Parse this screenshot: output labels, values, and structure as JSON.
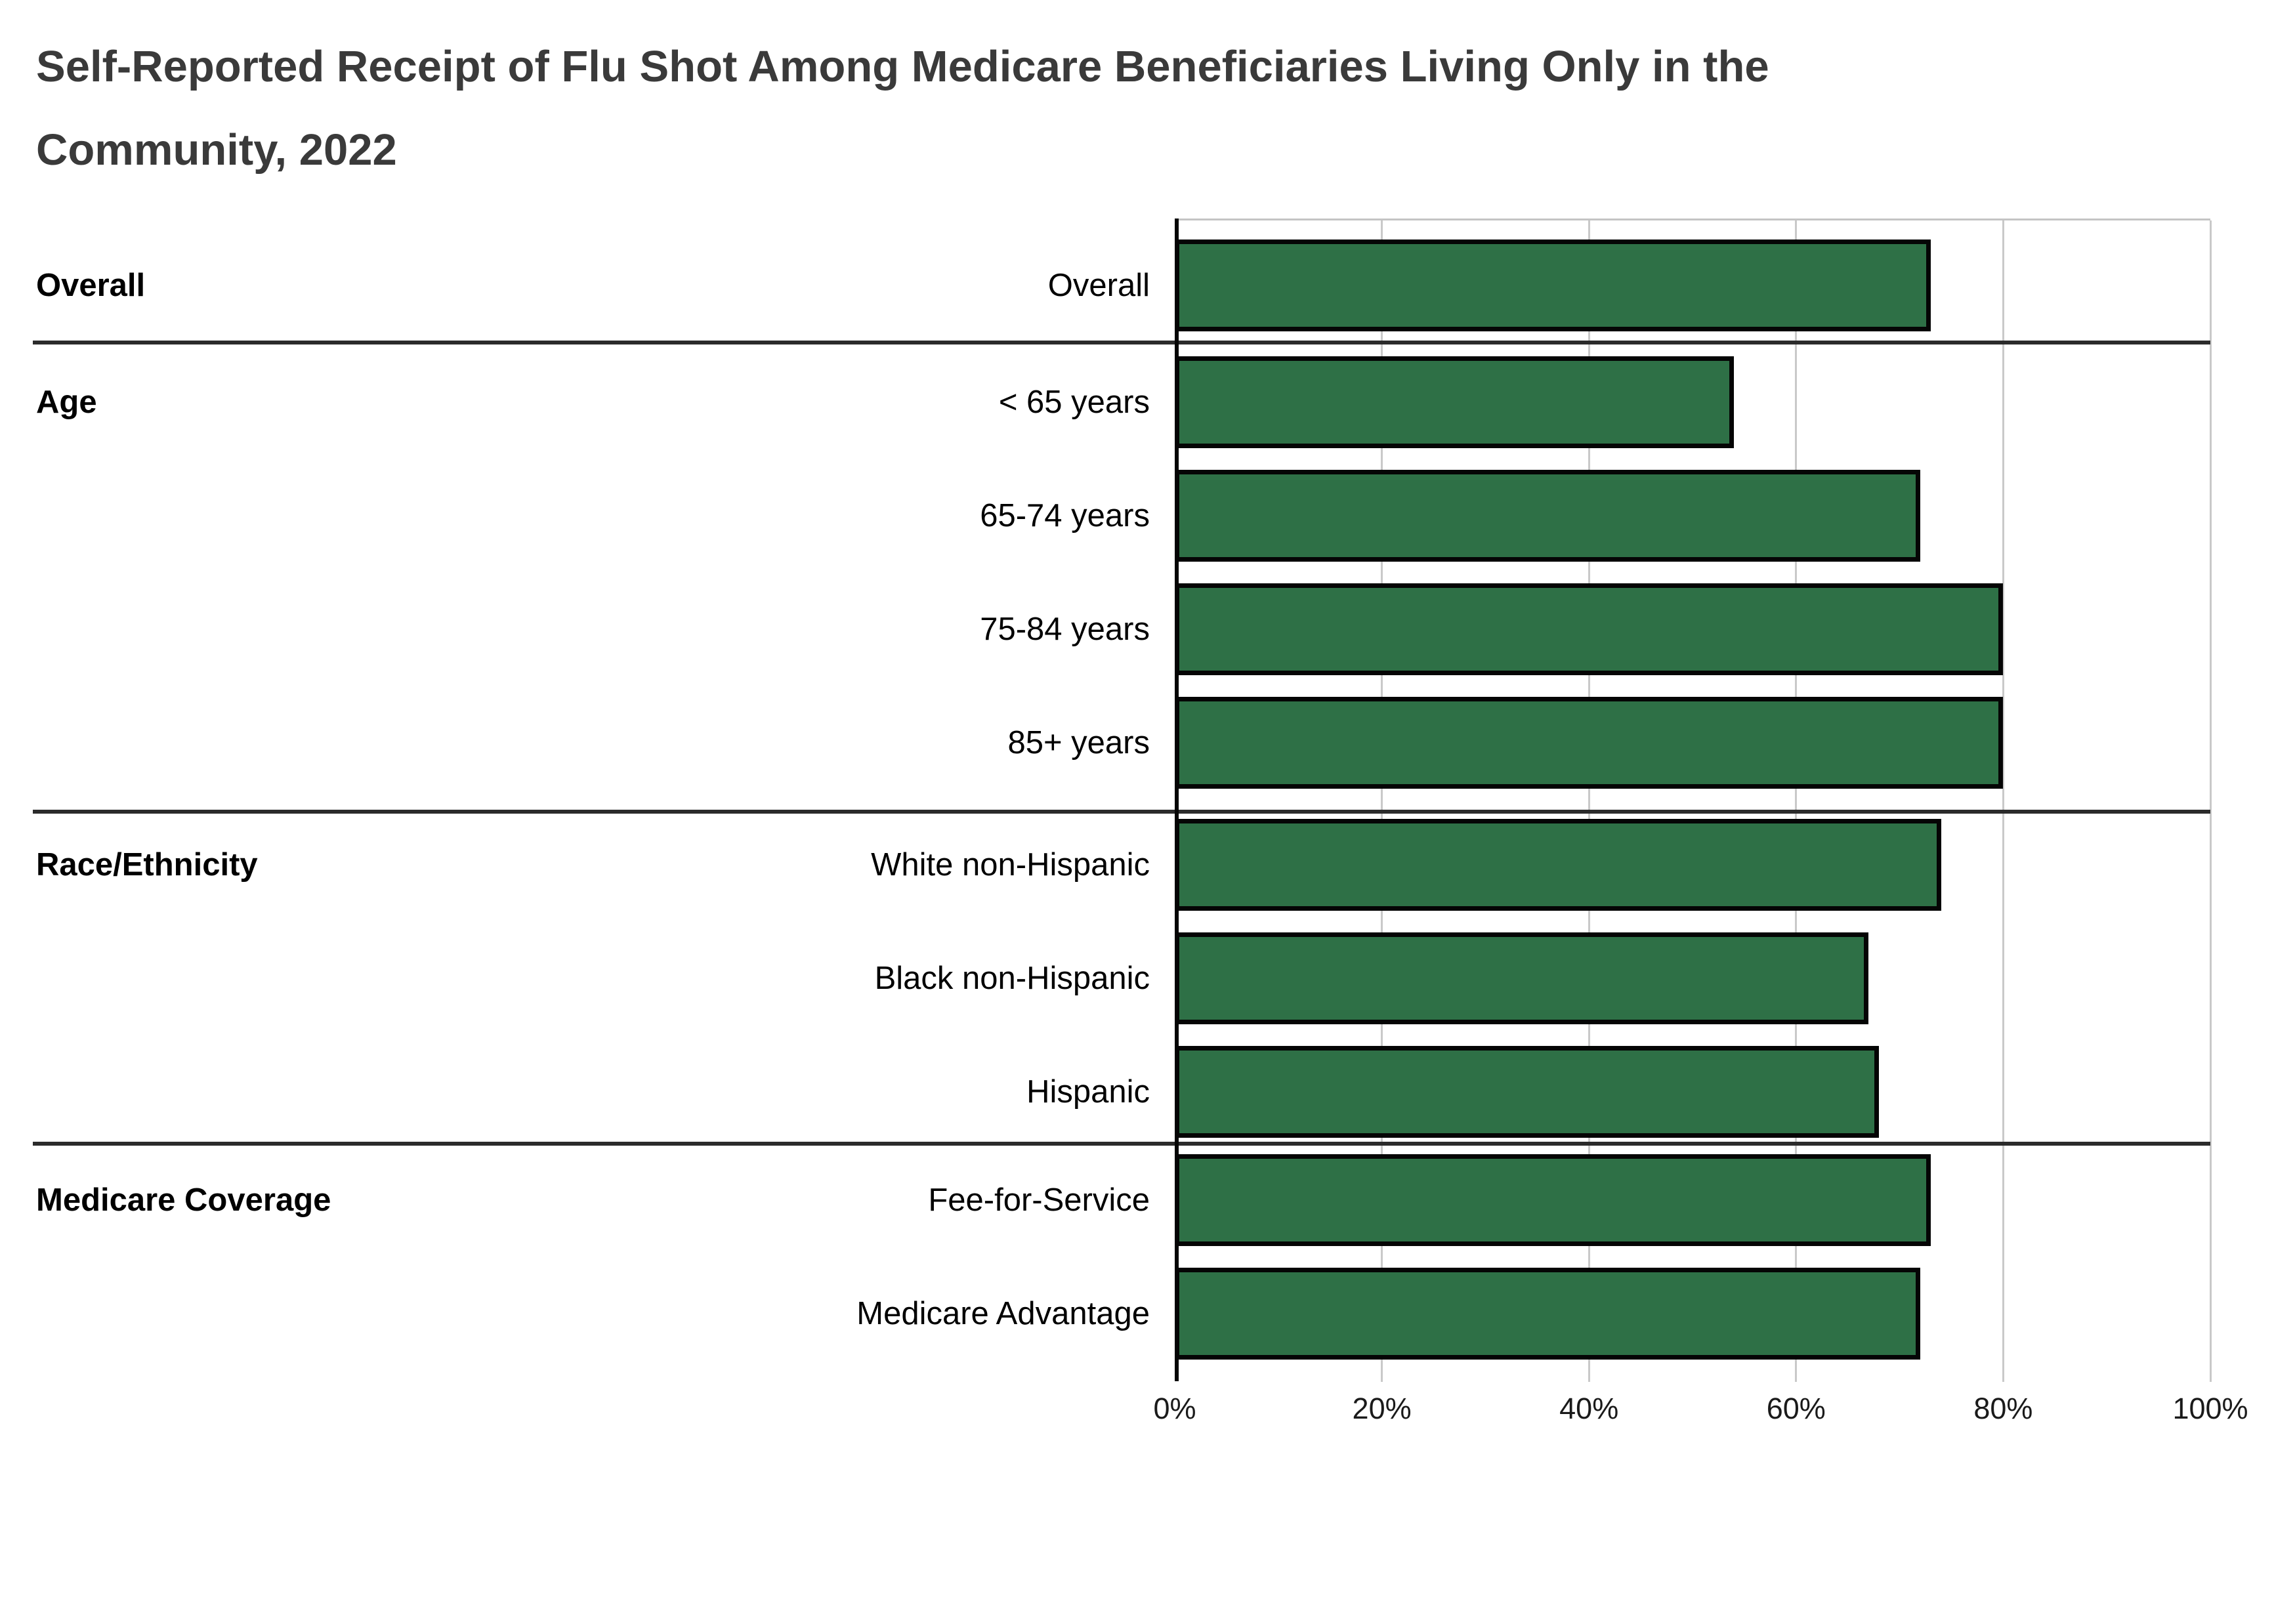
{
  "title": {
    "line1": "Self-Reported Receipt of Flu Shot Among Medicare Beneficiaries Living Only in the",
    "line2": "Community, 2022"
  },
  "chart": {
    "sections": [
      {
        "label": "Overall",
        "rows": [
          {
            "label": "Overall",
            "value": 73
          }
        ]
      },
      {
        "label": "Age",
        "rows": [
          {
            "label": "< 65 years",
            "value": 54
          },
          {
            "label": "65-74 years",
            "value": 72
          },
          {
            "label": "75-84 years",
            "value": 80
          },
          {
            "label": "85+ years",
            "value": 80
          }
        ]
      },
      {
        "label": "Race/Ethnicity",
        "rows": [
          {
            "label": "White non-Hispanic",
            "value": 74
          },
          {
            "label": "Black non-Hispanic",
            "value": 67
          },
          {
            "label": "Hispanic",
            "value": 68
          }
        ]
      },
      {
        "label": "Medicare Coverage",
        "rows": [
          {
            "label": "Fee-for-Service",
            "value": 73
          },
          {
            "label": "Medicare Advantage",
            "value": 72
          }
        ]
      }
    ],
    "x_axis": {
      "min": 0,
      "max": 100,
      "tick_step": 20,
      "ticks": [
        "0%",
        "20%",
        "40%",
        "60%",
        "80%",
        "100%"
      ]
    }
  },
  "colors": {
    "bar_fill": "#2e7046",
    "bar_border": "#050505",
    "gridline": "#c9c9c9",
    "divider": "#2b2b2b",
    "title_text": "#3a3a3a"
  },
  "chart_data": {
    "type": "bar",
    "orientation": "horizontal",
    "title": "Self-Reported Receipt of Flu Shot Among Medicare Beneficiaries Living Only in the Community, 2022",
    "xlabel": "",
    "ylabel": "",
    "xlim": [
      0,
      100
    ],
    "xticks_percent": [
      0,
      20,
      40,
      60,
      80,
      100
    ],
    "grid": "vertical",
    "legend": "none",
    "categories": [
      "Overall",
      "< 65 years",
      "65-74 years",
      "75-84 years",
      "85+ years",
      "White non-Hispanic",
      "Black non-Hispanic",
      "Hispanic",
      "Fee-for-Service",
      "Medicare Advantage"
    ],
    "values": [
      73,
      54,
      72,
      80,
      80,
      74,
      67,
      68,
      73,
      72
    ],
    "groups": [
      {
        "name": "Overall",
        "categories": [
          "Overall"
        ],
        "values": [
          73
        ]
      },
      {
        "name": "Age",
        "categories": [
          "< 65 years",
          "65-74 years",
          "75-84 years",
          "85+ years"
        ],
        "values": [
          54,
          72,
          80,
          80
        ]
      },
      {
        "name": "Race/Ethnicity",
        "categories": [
          "White non-Hispanic",
          "Black non-Hispanic",
          "Hispanic"
        ],
        "values": [
          74,
          67,
          68
        ]
      },
      {
        "name": "Medicare Coverage",
        "categories": [
          "Fee-for-Service",
          "Medicare Advantage"
        ],
        "values": [
          73,
          72
        ]
      }
    ],
    "bar_color": "#2e7046"
  }
}
